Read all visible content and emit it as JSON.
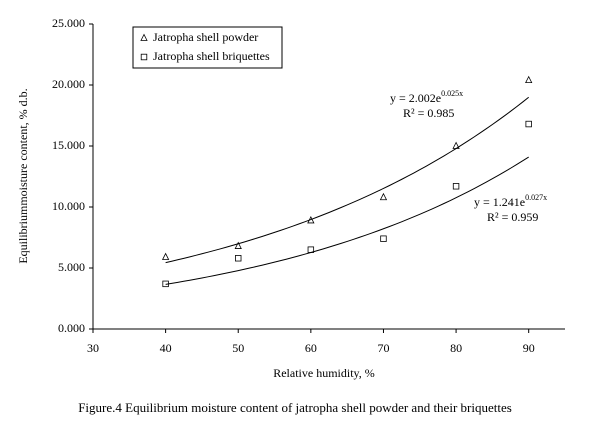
{
  "chart_data": {
    "type": "scatter",
    "caption": "Figure.4 Equilibrium moisture content of jatropha shell powder and their briquettes",
    "x_label": "Relative humidity, %",
    "y_label": "Equilibriummoisture content, % d.b.",
    "xlim": [
      30,
      95
    ],
    "xticks": [
      30,
      40,
      50,
      60,
      70,
      80,
      90
    ],
    "ylim": [
      0,
      25
    ],
    "yticks": [
      {
        "value": 0,
        "label": "0.000"
      },
      {
        "value": 5,
        "label": "5.000"
      },
      {
        "value": 10,
        "label": "10.000"
      },
      {
        "value": 15,
        "label": "15.000"
      },
      {
        "value": 20,
        "label": "20.000"
      },
      {
        "value": 25,
        "label": "25.000"
      }
    ],
    "grid": false,
    "legend": "top-left",
    "series": [
      {
        "name": "Jatropha shell powder",
        "marker": "triangle",
        "color": "#000000",
        "x": [
          40,
          50,
          60,
          70,
          80,
          90
        ],
        "values": [
          5.9,
          6.8,
          8.9,
          10.8,
          15.0,
          20.4
        ],
        "trendline": {
          "a": 2.002,
          "b": 0.025,
          "equation": "y = 2.002e",
          "exponent": "0.025x",
          "r2_label": "R² = 0.985"
        }
      },
      {
        "name": "Jatropha shell briquettes",
        "marker": "square",
        "color": "#000000",
        "x": [
          40,
          50,
          60,
          70,
          80,
          90
        ],
        "values": [
          3.7,
          5.8,
          6.5,
          7.4,
          11.7,
          16.8
        ],
        "trendline": {
          "a": 1.241,
          "b": 0.027,
          "equation": "y = 1.241e",
          "exponent": "0.027x",
          "r2_label": "R² = 0.959"
        }
      }
    ]
  }
}
